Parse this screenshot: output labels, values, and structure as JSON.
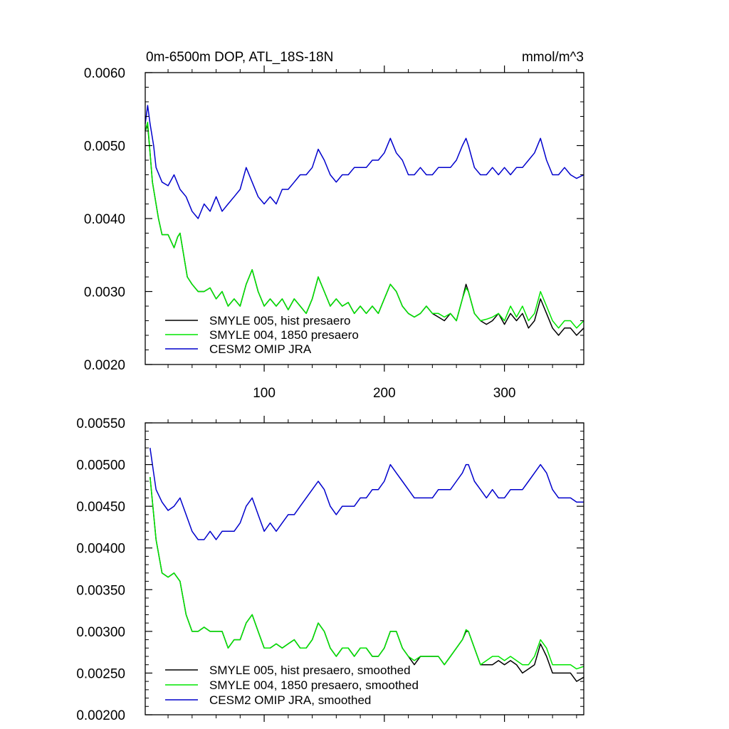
{
  "figure": {
    "title": "0m-6500m DOP, ATL_18S-18N",
    "units": "mmol/m^3"
  },
  "chart_data": [
    {
      "type": "line",
      "title": "0m-6500m DOP, ATL_18S-18N",
      "units_label": "mmol/m^3",
      "xlim": [
        1,
        366
      ],
      "ylim": [
        0.002,
        0.006
      ],
      "xticks": [
        100,
        200,
        300
      ],
      "xtick_labels": [
        "100",
        "200",
        "300"
      ],
      "yticks": [
        0.002,
        0.003,
        0.004,
        0.005,
        0.006
      ],
      "ytick_labels": [
        "0.0020",
        "0.0030",
        "0.0040",
        "0.0050",
        "0.0060"
      ],
      "grid": false,
      "legend_position": "bottom-left",
      "series": [
        {
          "name": "SMYLE 005, hist presaero",
          "color": "#000000",
          "x": [
            1,
            3,
            5,
            7,
            9,
            12,
            15,
            20,
            25,
            28,
            30,
            33,
            36,
            40,
            45,
            50,
            55,
            60,
            65,
            70,
            75,
            80,
            85,
            90,
            95,
            100,
            105,
            110,
            115,
            120,
            125,
            130,
            135,
            140,
            145,
            150,
            155,
            160,
            165,
            170,
            175,
            180,
            185,
            190,
            195,
            200,
            205,
            210,
            215,
            220,
            225,
            230,
            235,
            240,
            245,
            250,
            255,
            260,
            265,
            268,
            270,
            275,
            280,
            285,
            290,
            295,
            300,
            305,
            310,
            315,
            320,
            325,
            330,
            335,
            340,
            345,
            350,
            355,
            360,
            366
          ],
          "y": [
            0.0052,
            0.00528,
            0.0049,
            0.0045,
            0.0043,
            0.004,
            0.00378,
            0.00378,
            0.0036,
            0.00375,
            0.0038,
            0.0035,
            0.0032,
            0.0031,
            0.003,
            0.003,
            0.00305,
            0.0029,
            0.003,
            0.0028,
            0.0029,
            0.0028,
            0.0031,
            0.0033,
            0.003,
            0.0028,
            0.0029,
            0.0028,
            0.0029,
            0.00275,
            0.0029,
            0.0028,
            0.0027,
            0.0029,
            0.0032,
            0.003,
            0.0028,
            0.0029,
            0.0028,
            0.00285,
            0.0027,
            0.0028,
            0.0027,
            0.0028,
            0.0027,
            0.0029,
            0.0031,
            0.003,
            0.0028,
            0.0027,
            0.00265,
            0.0027,
            0.0028,
            0.0027,
            0.00265,
            0.0026,
            0.0027,
            0.0026,
            0.0029,
            0.0031,
            0.003,
            0.0027,
            0.0026,
            0.00255,
            0.0026,
            0.0027,
            0.00255,
            0.0027,
            0.0026,
            0.0027,
            0.0025,
            0.0026,
            0.0029,
            0.0027,
            0.0025,
            0.0024,
            0.0025,
            0.0025,
            0.0024,
            0.0025
          ]
        },
        {
          "name": "SMYLE 004, 1850 presaero",
          "color": "#00e600",
          "x": [
            1,
            3,
            5,
            7,
            9,
            12,
            15,
            20,
            25,
            28,
            30,
            33,
            36,
            40,
            45,
            50,
            55,
            60,
            65,
            70,
            75,
            80,
            85,
            90,
            95,
            100,
            105,
            110,
            115,
            120,
            125,
            130,
            135,
            140,
            145,
            150,
            155,
            160,
            165,
            170,
            175,
            180,
            185,
            190,
            195,
            200,
            205,
            210,
            215,
            220,
            225,
            230,
            235,
            240,
            245,
            250,
            255,
            260,
            265,
            268,
            270,
            275,
            280,
            285,
            290,
            295,
            300,
            305,
            310,
            315,
            320,
            325,
            330,
            335,
            340,
            345,
            350,
            355,
            360,
            366
          ],
          "y": [
            0.0052,
            0.00532,
            0.0049,
            0.0045,
            0.0043,
            0.004,
            0.00378,
            0.00378,
            0.0036,
            0.00375,
            0.0038,
            0.0035,
            0.0032,
            0.0031,
            0.003,
            0.003,
            0.00305,
            0.0029,
            0.003,
            0.0028,
            0.0029,
            0.0028,
            0.0031,
            0.0033,
            0.003,
            0.0028,
            0.0029,
            0.0028,
            0.0029,
            0.00275,
            0.0029,
            0.0028,
            0.0027,
            0.0029,
            0.0032,
            0.003,
            0.0028,
            0.0029,
            0.0028,
            0.00285,
            0.0027,
            0.0028,
            0.0027,
            0.0028,
            0.0027,
            0.0029,
            0.0031,
            0.003,
            0.0028,
            0.0027,
            0.00265,
            0.0027,
            0.0028,
            0.0027,
            0.0027,
            0.00265,
            0.0027,
            0.0026,
            0.0029,
            0.00305,
            0.003,
            0.0027,
            0.0026,
            0.00262,
            0.00265,
            0.0027,
            0.0026,
            0.0028,
            0.00265,
            0.0028,
            0.0026,
            0.0027,
            0.003,
            0.0028,
            0.0026,
            0.0025,
            0.0026,
            0.0026,
            0.0025,
            0.0026
          ]
        },
        {
          "name": "CESM2 OMIP JRA",
          "color": "#0000cc",
          "x": [
            1,
            3,
            5,
            8,
            10,
            15,
            20,
            25,
            30,
            35,
            40,
            45,
            50,
            55,
            60,
            65,
            70,
            75,
            80,
            85,
            90,
            95,
            100,
            105,
            110,
            115,
            120,
            125,
            130,
            135,
            140,
            145,
            150,
            155,
            160,
            165,
            170,
            175,
            180,
            185,
            190,
            195,
            200,
            205,
            210,
            215,
            220,
            225,
            230,
            235,
            240,
            245,
            250,
            255,
            260,
            265,
            268,
            270,
            275,
            280,
            285,
            290,
            295,
            300,
            305,
            310,
            315,
            320,
            325,
            330,
            335,
            340,
            345,
            350,
            355,
            360,
            366
          ],
          "y": [
            0.0053,
            0.00555,
            0.0053,
            0.005,
            0.0047,
            0.0045,
            0.00445,
            0.0046,
            0.0044,
            0.0043,
            0.0041,
            0.004,
            0.0042,
            0.0041,
            0.0043,
            0.0041,
            0.0042,
            0.0043,
            0.0044,
            0.0047,
            0.0045,
            0.0043,
            0.0042,
            0.0043,
            0.0042,
            0.0044,
            0.0044,
            0.0045,
            0.0046,
            0.0046,
            0.0047,
            0.00495,
            0.0048,
            0.0046,
            0.0045,
            0.0046,
            0.0046,
            0.0047,
            0.0047,
            0.0047,
            0.0048,
            0.0048,
            0.0049,
            0.0051,
            0.0049,
            0.0048,
            0.0046,
            0.0046,
            0.0047,
            0.0046,
            0.0046,
            0.0047,
            0.0047,
            0.0047,
            0.0048,
            0.005,
            0.0051,
            0.005,
            0.0047,
            0.0046,
            0.0046,
            0.0047,
            0.0046,
            0.0047,
            0.0046,
            0.0047,
            0.0047,
            0.0048,
            0.0049,
            0.0051,
            0.0048,
            0.0046,
            0.0046,
            0.0047,
            0.0046,
            0.00455,
            0.0046
          ]
        }
      ]
    },
    {
      "type": "line",
      "title": "",
      "xlim": [
        1,
        366
      ],
      "ylim": [
        0.002,
        0.0055
      ],
      "xticks": [
        100,
        200,
        300
      ],
      "xtick_labels": [],
      "yticks": [
        0.002,
        0.0025,
        0.003,
        0.0035,
        0.004,
        0.0045,
        0.005,
        0.0055
      ],
      "ytick_labels": [
        "0.00200",
        "0.00250",
        "0.00300",
        "0.00350",
        "0.00400",
        "0.00450",
        "0.00500",
        "0.00550"
      ],
      "grid": false,
      "legend_position": "bottom-left",
      "series": [
        {
          "name": "SMYLE 005, hist presaero, smoothed",
          "color": "#000000",
          "x": [
            5,
            10,
            15,
            20,
            25,
            30,
            35,
            40,
            45,
            50,
            55,
            60,
            65,
            70,
            75,
            80,
            85,
            90,
            95,
            100,
            105,
            110,
            115,
            120,
            125,
            130,
            135,
            140,
            145,
            150,
            155,
            160,
            165,
            170,
            175,
            180,
            185,
            190,
            195,
            200,
            205,
            210,
            215,
            220,
            225,
            230,
            235,
            240,
            245,
            250,
            255,
            260,
            265,
            268,
            270,
            275,
            280,
            285,
            290,
            295,
            300,
            305,
            310,
            315,
            320,
            325,
            330,
            335,
            340,
            345,
            350,
            355,
            360,
            366
          ],
          "y": [
            0.00485,
            0.0041,
            0.0037,
            0.00365,
            0.0037,
            0.0036,
            0.0032,
            0.003,
            0.003,
            0.00305,
            0.003,
            0.003,
            0.003,
            0.0028,
            0.0029,
            0.0029,
            0.0031,
            0.0032,
            0.003,
            0.0028,
            0.0028,
            0.00285,
            0.0028,
            0.00285,
            0.0029,
            0.0028,
            0.0028,
            0.0029,
            0.0031,
            0.003,
            0.0028,
            0.0027,
            0.0028,
            0.0028,
            0.0027,
            0.0028,
            0.0028,
            0.0027,
            0.0027,
            0.0028,
            0.003,
            0.003,
            0.0028,
            0.0027,
            0.0026,
            0.0027,
            0.0027,
            0.0027,
            0.0027,
            0.0026,
            0.0027,
            0.0028,
            0.0029,
            0.003,
            0.003,
            0.0028,
            0.0026,
            0.0026,
            0.0026,
            0.00265,
            0.0026,
            0.00265,
            0.0026,
            0.0025,
            0.00255,
            0.0026,
            0.00285,
            0.0027,
            0.0025,
            0.0025,
            0.0025,
            0.0025,
            0.0024,
            0.00245
          ]
        },
        {
          "name": "SMYLE 004, 1850 presaero, smoothed",
          "color": "#00e600",
          "x": [
            5,
            10,
            15,
            20,
            25,
            30,
            35,
            40,
            45,
            50,
            55,
            60,
            65,
            70,
            75,
            80,
            85,
            90,
            95,
            100,
            105,
            110,
            115,
            120,
            125,
            130,
            135,
            140,
            145,
            150,
            155,
            160,
            165,
            170,
            175,
            180,
            185,
            190,
            195,
            200,
            205,
            210,
            215,
            220,
            225,
            230,
            235,
            240,
            245,
            250,
            255,
            260,
            265,
            268,
            270,
            275,
            280,
            285,
            290,
            295,
            300,
            305,
            310,
            315,
            320,
            325,
            330,
            335,
            340,
            345,
            350,
            355,
            360,
            366
          ],
          "y": [
            0.00485,
            0.0041,
            0.0037,
            0.00365,
            0.0037,
            0.0036,
            0.0032,
            0.003,
            0.003,
            0.00305,
            0.003,
            0.003,
            0.003,
            0.0028,
            0.0029,
            0.0029,
            0.0031,
            0.0032,
            0.003,
            0.0028,
            0.0028,
            0.00285,
            0.0028,
            0.00285,
            0.0029,
            0.0028,
            0.0028,
            0.0029,
            0.0031,
            0.003,
            0.0028,
            0.0027,
            0.0028,
            0.0028,
            0.0027,
            0.0028,
            0.0028,
            0.0027,
            0.0027,
            0.0028,
            0.003,
            0.003,
            0.0028,
            0.0027,
            0.00265,
            0.0027,
            0.0027,
            0.0027,
            0.0027,
            0.0026,
            0.0027,
            0.0028,
            0.0029,
            0.00302,
            0.003,
            0.0028,
            0.0026,
            0.00265,
            0.0027,
            0.0027,
            0.00265,
            0.0027,
            0.00265,
            0.0026,
            0.0026,
            0.0027,
            0.0029,
            0.0028,
            0.0026,
            0.0026,
            0.0026,
            0.0026,
            0.00255,
            0.00258
          ]
        },
        {
          "name": "CESM2 OMIP JRA, smoothed",
          "color": "#0000cc",
          "x": [
            5,
            8,
            10,
            15,
            20,
            25,
            30,
            35,
            40,
            45,
            50,
            55,
            60,
            65,
            70,
            75,
            80,
            85,
            90,
            95,
            100,
            105,
            110,
            115,
            120,
            125,
            130,
            135,
            140,
            145,
            150,
            155,
            160,
            165,
            170,
            175,
            180,
            185,
            190,
            195,
            200,
            205,
            210,
            215,
            220,
            225,
            230,
            235,
            240,
            245,
            250,
            255,
            260,
            265,
            268,
            270,
            275,
            280,
            285,
            290,
            295,
            300,
            305,
            310,
            315,
            320,
            325,
            330,
            335,
            340,
            345,
            350,
            355,
            360,
            366
          ],
          "y": [
            0.0052,
            0.0049,
            0.0047,
            0.00455,
            0.00445,
            0.0045,
            0.0046,
            0.0044,
            0.0042,
            0.0041,
            0.0041,
            0.0042,
            0.0041,
            0.0042,
            0.0042,
            0.0042,
            0.0043,
            0.0045,
            0.0046,
            0.0044,
            0.0042,
            0.0043,
            0.0042,
            0.0043,
            0.0044,
            0.0044,
            0.0045,
            0.0046,
            0.0047,
            0.0048,
            0.0047,
            0.0045,
            0.0044,
            0.0045,
            0.0045,
            0.0045,
            0.0046,
            0.0046,
            0.0047,
            0.0047,
            0.0048,
            0.005,
            0.0049,
            0.0048,
            0.0047,
            0.0046,
            0.0046,
            0.0046,
            0.0046,
            0.0047,
            0.0047,
            0.0047,
            0.0048,
            0.0049,
            0.005,
            0.005,
            0.0048,
            0.0047,
            0.0046,
            0.0047,
            0.0046,
            0.0046,
            0.0047,
            0.0047,
            0.0047,
            0.0048,
            0.0049,
            0.005,
            0.0049,
            0.0047,
            0.0046,
            0.0046,
            0.0046,
            0.00455,
            0.00455
          ]
        }
      ]
    }
  ]
}
